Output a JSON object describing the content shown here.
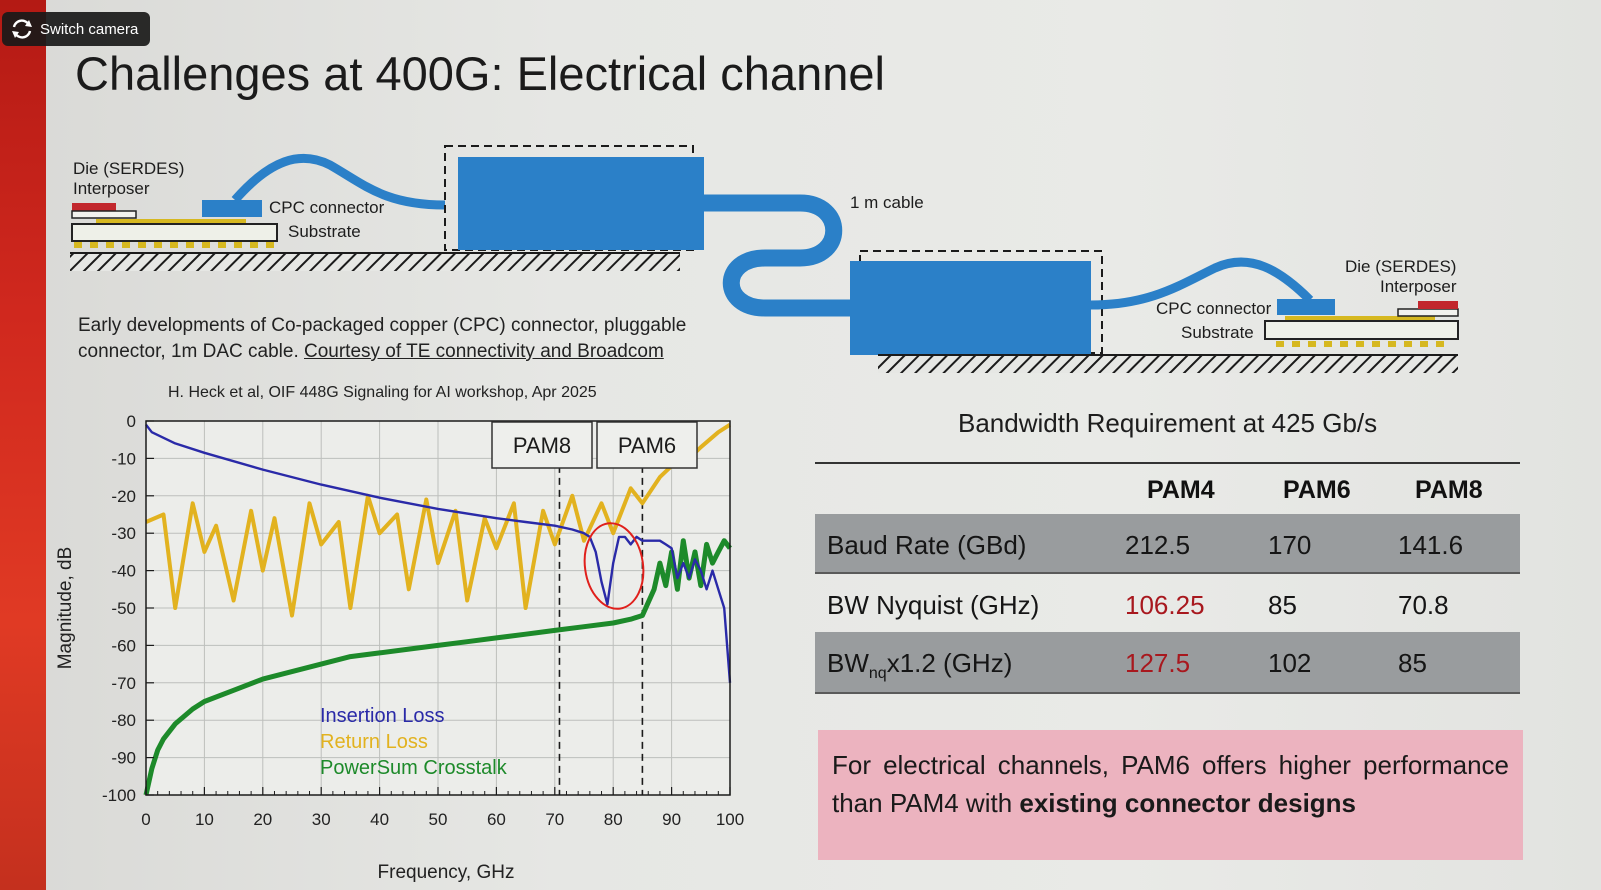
{
  "overlay": {
    "switch_camera_label": "Switch camera"
  },
  "slide": {
    "title": "Challenges at 400G: Electrical channel",
    "diagram": {
      "left_die_label": "Die (SERDES)",
      "left_interposer_label": "Interposer",
      "left_cpc_label": "CPC connector",
      "left_substrate_label": "Substrate",
      "cable_label": "1 m cable",
      "right_die_label": "Die (SERDES)",
      "right_interposer_label": "Interposer",
      "right_cpc_label": "CPC connector",
      "right_substrate_label": "Substrate",
      "cable_color": "#2b80c8"
    },
    "caption": {
      "text": "Early developments of Co-packaged copper (CPC) connector, pluggable connector, 1m DAC cable. ",
      "link_text": "Courtesy of TE connectivity and Broadcom"
    },
    "chart_citation": "H. Heck et al, OIF 448G Signaling for AI workshop, Apr 2025",
    "bandwidth_table": {
      "title": "Bandwidth Requirement at 425 Gb/s",
      "columns": [
        "PAM4",
        "PAM6",
        "PAM8"
      ],
      "rows": [
        {
          "label": "Baud Rate (GBd)",
          "values": [
            "212.5",
            "170",
            "141.6"
          ]
        },
        {
          "label": "BW Nyquist (GHz)",
          "values": [
            "106.25",
            "85",
            "70.8"
          ]
        },
        {
          "label_main": "BW",
          "label_sub": "nq",
          "label_rest": "x1.2 (GHz)",
          "values": [
            "127.5",
            "102",
            "85"
          ]
        }
      ],
      "highlight_color": "#a8181e"
    },
    "conclusion": {
      "text": "For electrical channels, PAM6 offers higher performance than PAM4 with ",
      "bold": "existing connector designs"
    }
  },
  "chart_data": {
    "type": "line",
    "title": "",
    "xlabel": "Frequency, GHz",
    "ylabel": "Magnitude, dB",
    "xlim": [
      0,
      100
    ],
    "ylim": [
      -100,
      0
    ],
    "xticks": [
      "0",
      "10",
      "20",
      "30",
      "40",
      "50",
      "60",
      "70",
      "80",
      "90",
      "100"
    ],
    "yticks": [
      "0",
      "-10",
      "-20",
      "-30",
      "-40",
      "-50",
      "-60",
      "-70",
      "-80",
      "-90",
      "-100"
    ],
    "grid": true,
    "legend_placement": "bottom-center",
    "series": [
      {
        "name": "Insertion Loss",
        "color": "#2a2aa8",
        "x": [
          0,
          1,
          5,
          10,
          20,
          30,
          40,
          50,
          60,
          65,
          70,
          73,
          75,
          76,
          77,
          78,
          79,
          80,
          81,
          82,
          83,
          84,
          85,
          87,
          88,
          89,
          90,
          91,
          92,
          93,
          94,
          95,
          96,
          97,
          98,
          99,
          100
        ],
        "y": [
          -1,
          -3,
          -6,
          -8.5,
          -13,
          -17,
          -20.5,
          -23.5,
          -26,
          -27,
          -28,
          -29,
          -30,
          -31,
          -35,
          -43,
          -49,
          -38,
          -31,
          -31,
          -33,
          -31,
          -32,
          -32,
          -32,
          -33,
          -34,
          -42,
          -38,
          -42,
          -37,
          -40,
          -45,
          -40,
          -45,
          -50,
          -70
        ]
      },
      {
        "name": "Return Loss",
        "color": "#e2b21f",
        "x": [
          0,
          3,
          5,
          8,
          10,
          12,
          15,
          18,
          20,
          22,
          25,
          28,
          30,
          33,
          35,
          38,
          40,
          43,
          45,
          48,
          50,
          53,
          55,
          58,
          60,
          63,
          65,
          68,
          70,
          73,
          75,
          78,
          80,
          83,
          85,
          88,
          90,
          93,
          95,
          98,
          100
        ],
        "y": [
          -27,
          -25,
          -50,
          -22,
          -35,
          -28,
          -48,
          -24,
          -40,
          -26,
          -52,
          -22,
          -33,
          -27,
          -50,
          -20,
          -30,
          -25,
          -45,
          -21,
          -38,
          -24,
          -48,
          -26,
          -34,
          -22,
          -50,
          -24,
          -33,
          -20,
          -32,
          -22,
          -30,
          -18,
          -22,
          -15,
          -12,
          -10,
          -7,
          -3,
          -1
        ]
      },
      {
        "name": "PowerSum Crosstalk",
        "color": "#1d8a2a",
        "x": [
          0,
          1,
          2,
          3,
          5,
          8,
          10,
          15,
          20,
          25,
          30,
          35,
          40,
          45,
          50,
          55,
          60,
          65,
          70,
          75,
          80,
          83,
          85,
          87,
          88,
          89,
          90,
          91,
          92,
          93,
          94,
          95,
          96,
          97,
          98,
          99,
          100
        ],
        "y": [
          -100,
          -93,
          -88,
          -85,
          -81,
          -77,
          -75,
          -72,
          -69,
          -67,
          -65,
          -63,
          -62,
          -61,
          -60,
          -59,
          -58,
          -57,
          -56,
          -55,
          -54,
          -53,
          -52,
          -45,
          -38,
          -44,
          -35,
          -45,
          -32,
          -42,
          -35,
          -44,
          -33,
          -38,
          -35,
          -32,
          -34
        ]
      }
    ],
    "annotations": [
      {
        "text": "PAM8",
        "x_marker": 70.8
      },
      {
        "text": "PAM6",
        "x_marker": 85
      }
    ]
  }
}
